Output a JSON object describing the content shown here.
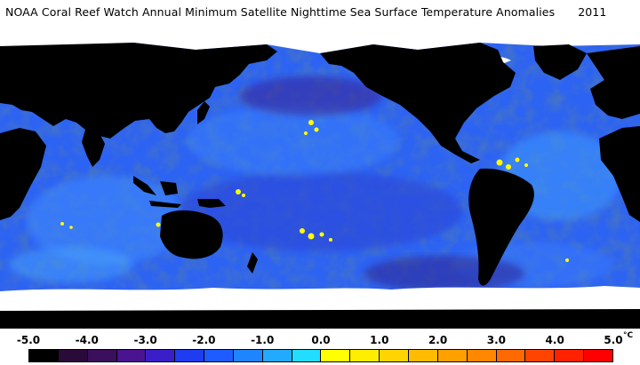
{
  "title": "NOAA Coral Reef Watch Annual Minimum Satellite Nighttime Sea Surface Temperature Anomalies",
  "year": "2011",
  "unit_label": "°C",
  "scale": {
    "ticks": [
      "-5.0",
      "-4.0",
      "-3.0",
      "-2.0",
      "-1.0",
      "0.0",
      "1.0",
      "2.0",
      "3.0",
      "4.0",
      "5.0"
    ],
    "colors": [
      "#000000",
      "#2a0a38",
      "#3a0f5c",
      "#4a1490",
      "#3a1fc8",
      "#1f3cf0",
      "#1e5cff",
      "#1f84ff",
      "#22aaff",
      "#22ddff",
      "#ffff00",
      "#ffee00",
      "#ffd400",
      "#ffbb00",
      "#ffa000",
      "#ff8800",
      "#ff6a00",
      "#ff4400",
      "#ff2200",
      "#ff0000"
    ]
  },
  "map": {
    "ocean_color": "#2d63f2",
    "land_color": "#000000",
    "ice_color": "#ffffff"
  }
}
